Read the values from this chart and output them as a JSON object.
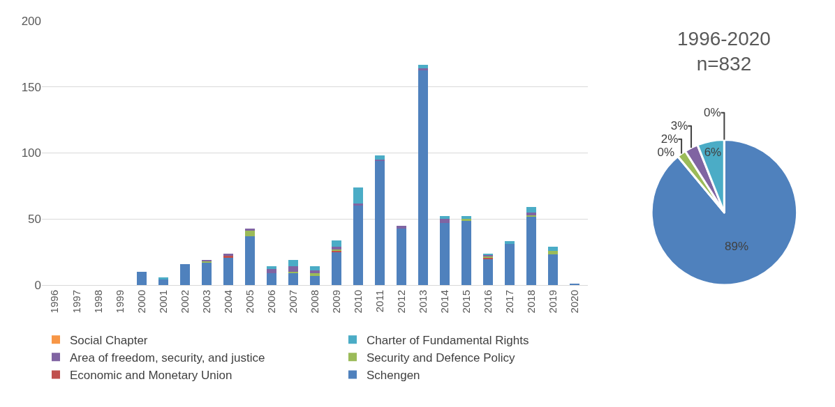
{
  "chart_data": [
    {
      "type": "bar",
      "stacked": true,
      "categories": [
        "1996",
        "1997",
        "1998",
        "1999",
        "2000",
        "2001",
        "2002",
        "2003",
        "2004",
        "2005",
        "2006",
        "2007",
        "2008",
        "2009",
        "2010",
        "2011",
        "2012",
        "2013",
        "2014",
        "2015",
        "2016",
        "2017",
        "2018",
        "2019",
        "2020"
      ],
      "ylim": [
        0,
        200
      ],
      "yticks": [
        0,
        50,
        100,
        150,
        200
      ],
      "grid": "y",
      "legend": "bottom",
      "series": [
        {
          "name": "Schengen",
          "color": "#4f81bd",
          "values": [
            0,
            0,
            0,
            0,
            10,
            4,
            16,
            17,
            21,
            37,
            9,
            9,
            7,
            25,
            60,
            94,
            43,
            163,
            47,
            49,
            20,
            31,
            52,
            23,
            1
          ]
        },
        {
          "name": "Economic and Monetary Union",
          "color": "#c0504d",
          "values": [
            0,
            0,
            0,
            0,
            0,
            0,
            0,
            0,
            1,
            0,
            0,
            0,
            0,
            1,
            0,
            0,
            0,
            0,
            0,
            0,
            1,
            0,
            0,
            0,
            0
          ]
        },
        {
          "name": "Security and Defence Policy",
          "color": "#9bbb59",
          "values": [
            0,
            0,
            0,
            0,
            0,
            0,
            0,
            1,
            0,
            4,
            0,
            1,
            2,
            1,
            0,
            0,
            0,
            0,
            0,
            1,
            1,
            0,
            1,
            3,
            0
          ]
        },
        {
          "name": "Area of freedom, security, and justice",
          "color": "#8064a2",
          "values": [
            0,
            0,
            0,
            0,
            0,
            0,
            0,
            1,
            2,
            2,
            3,
            4,
            2,
            2,
            2,
            1,
            2,
            1,
            3,
            0,
            1,
            0,
            2,
            0,
            0
          ]
        },
        {
          "name": "Charter of Fundamental Rights",
          "color": "#4bacc6",
          "values": [
            0,
            0,
            0,
            0,
            0,
            2,
            0,
            0,
            0,
            0,
            2,
            5,
            3,
            5,
            12,
            3,
            0,
            3,
            2,
            2,
            1,
            2,
            4,
            3,
            0
          ]
        },
        {
          "name": "Social Chapter",
          "color": "#f79646",
          "values": [
            0,
            0,
            0,
            0,
            0,
            0,
            0,
            0,
            0,
            0,
            0,
            0,
            0,
            0,
            0,
            0,
            0,
            0,
            0,
            0,
            0,
            0,
            0,
            0,
            0
          ]
        }
      ]
    },
    {
      "type": "pie",
      "title": "1996-2020\nn=832",
      "categories": [
        null,
        null,
        null,
        null,
        null,
        null
      ],
      "values": [
        89,
        0,
        2,
        3,
        6,
        0
      ],
      "colors": [
        "#4f81bd",
        "#c0504d",
        "#9bbb59",
        "#8064a2",
        "#4bacc6",
        "#f79646"
      ],
      "value_labels": [
        "89%",
        "0%",
        "2%",
        "3%",
        "6%",
        "0%"
      ]
    }
  ]
}
